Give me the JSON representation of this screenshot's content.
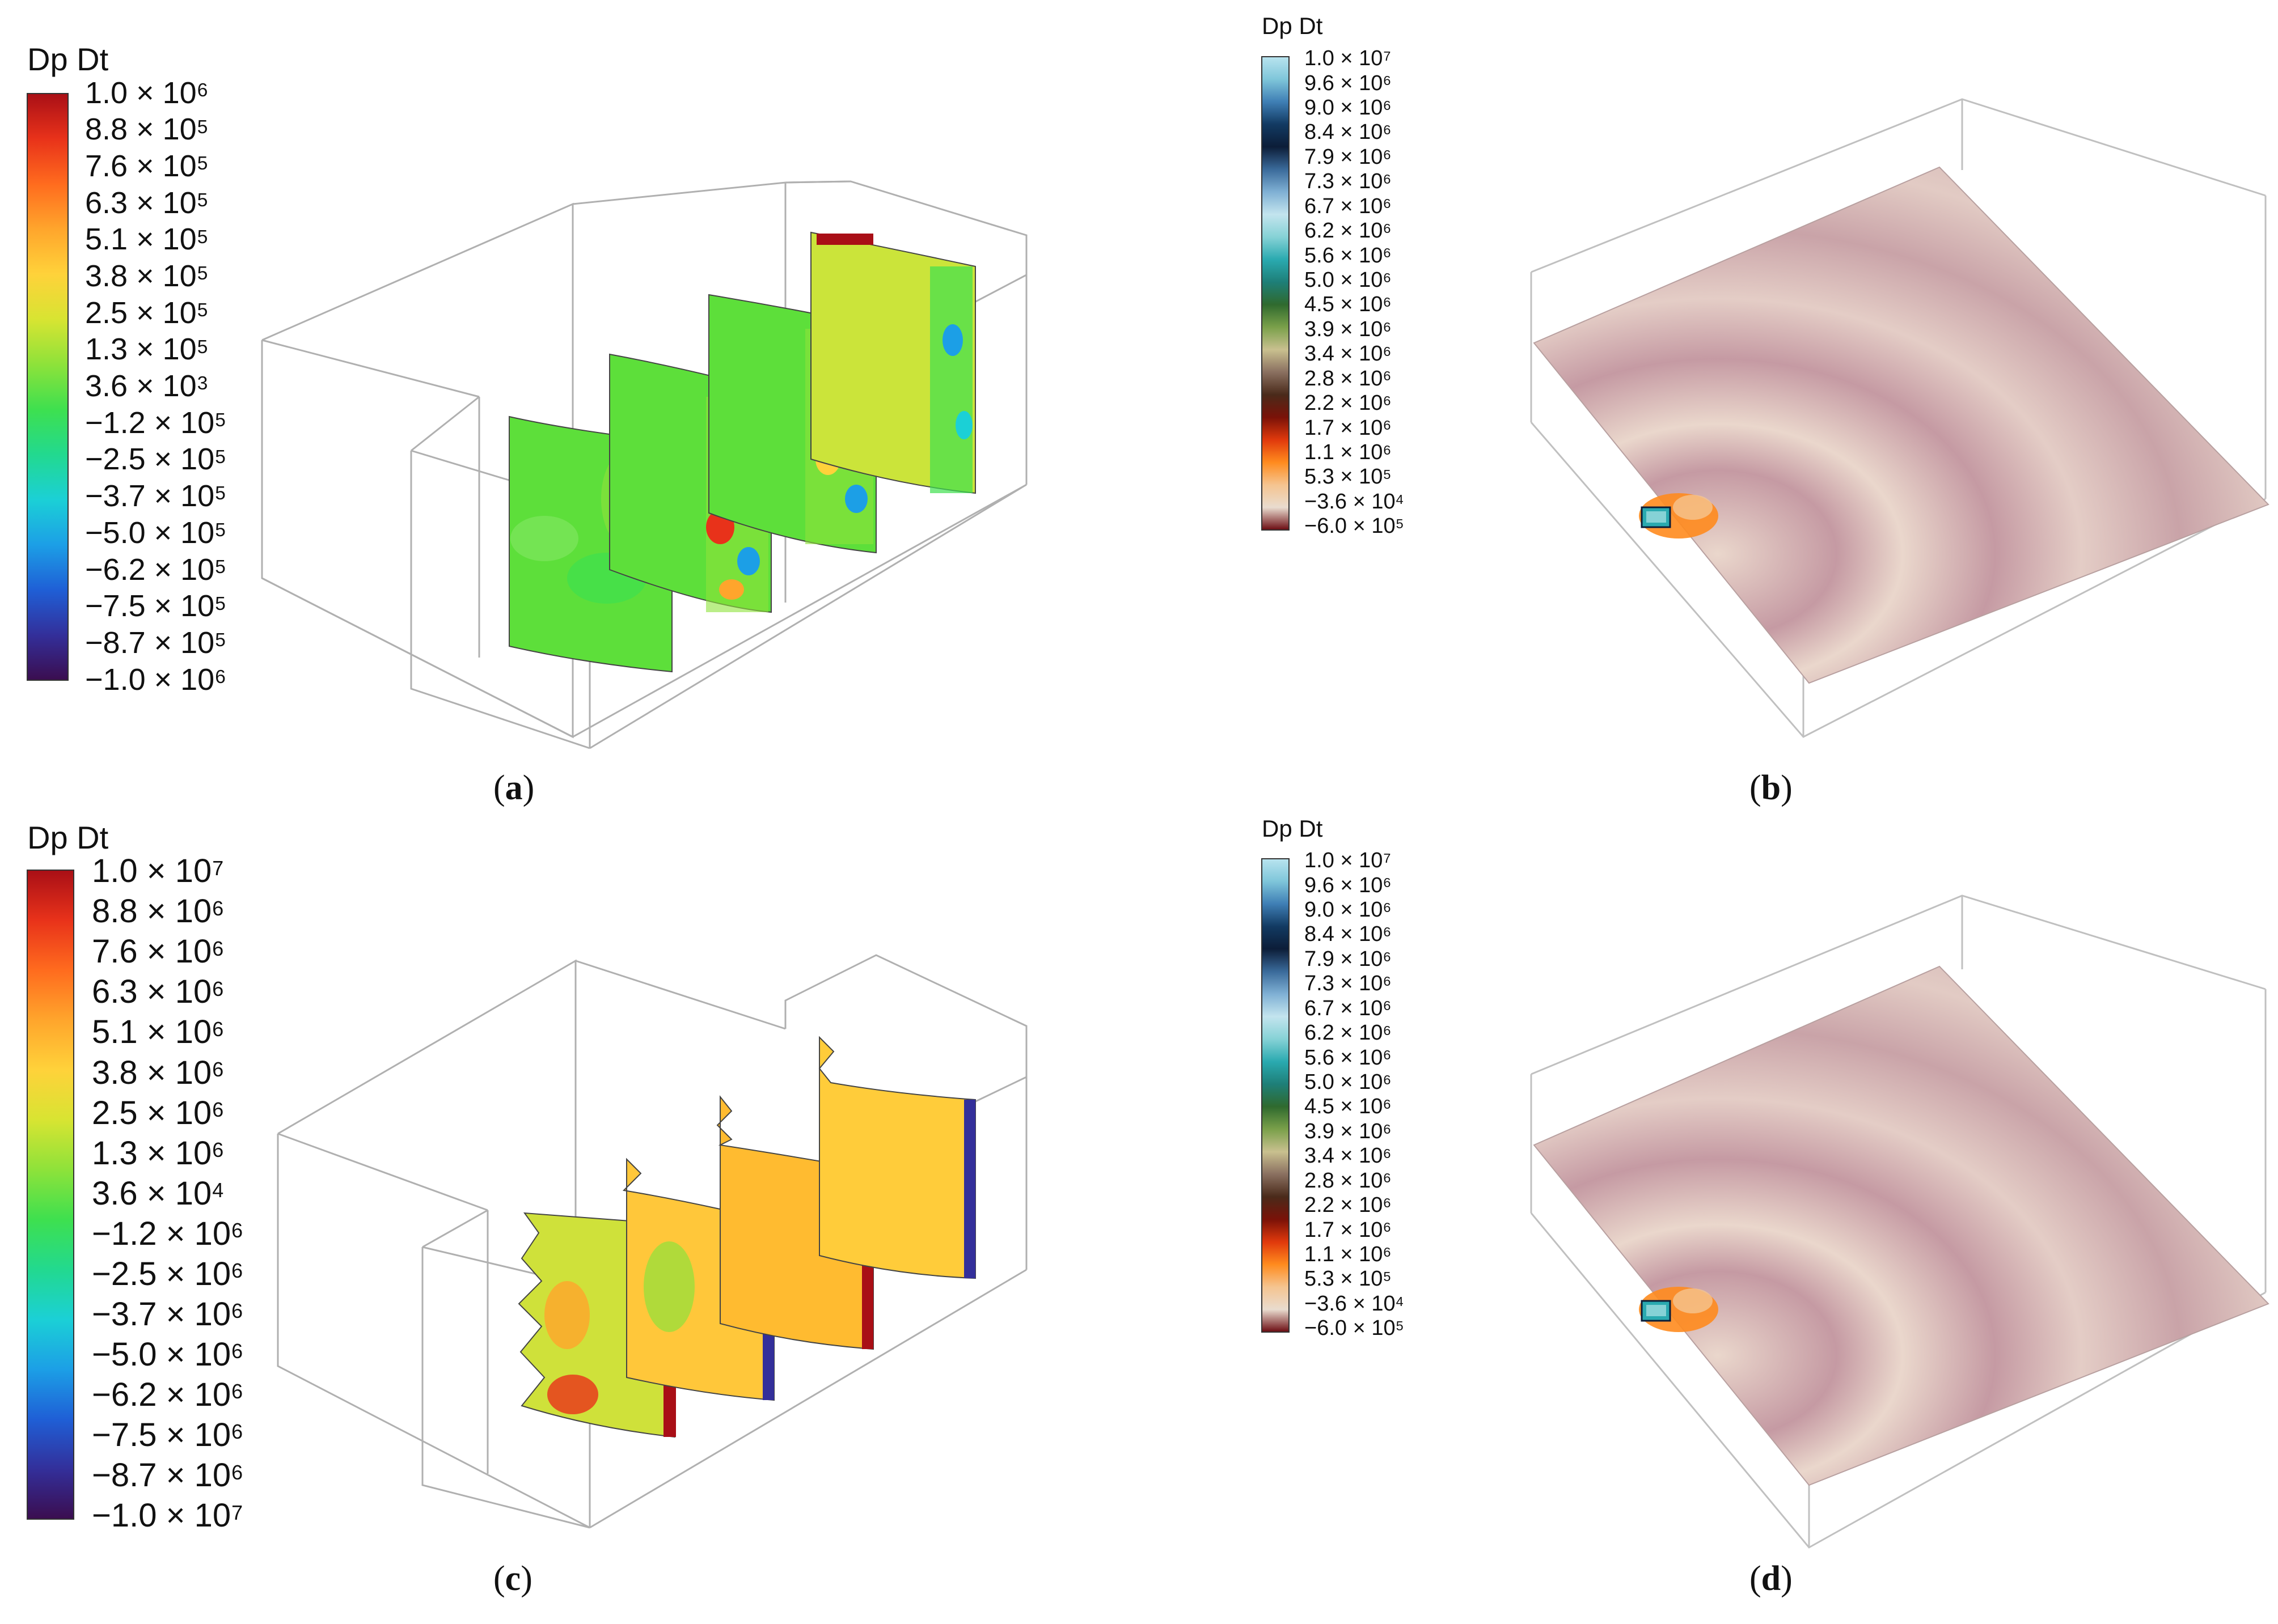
{
  "colors": {
    "jet": [
      "#3b0d4f",
      "#332f9a",
      "#1f5fd6",
      "#1c9fe6",
      "#1bd0d6",
      "#22d98f",
      "#3ee04f",
      "#8ee23a",
      "#d8e432",
      "#ffd23a",
      "#ffa52c",
      "#ff6b1e",
      "#e8321a",
      "#a90f16"
    ],
    "cmap": [
      "#6a0a10",
      "#e9dccf",
      "#f5c490",
      "#ff8b1e",
      "#e0390c",
      "#7a1208",
      "#4a2a1a",
      "#8a7060",
      "#c9c08f",
      "#7aa04a",
      "#2f6a2e",
      "#1e7f78",
      "#2aaab0",
      "#86d2d6",
      "#c3e4ee",
      "#7fb0d4",
      "#3a6a9a",
      "#0c1d38",
      "#123a62",
      "#3f7fb5",
      "#7fc6da",
      "#b9e4ef"
    ],
    "plane": "#dcc3c0",
    "plane_dark": "#c59aa3",
    "plane_light": "#ead7cc",
    "edge": "#b8b8b8"
  },
  "panels": [
    {
      "id": "a",
      "title": "Dp Dt",
      "caption": "a",
      "labels": [
        {
          "m": "1.0",
          "e": "6"
        },
        {
          "m": "8.8",
          "e": "5"
        },
        {
          "m": "7.6",
          "e": "5"
        },
        {
          "m": "6.3",
          "e": "5"
        },
        {
          "m": "5.1",
          "e": "5"
        },
        {
          "m": "3.8",
          "e": "5"
        },
        {
          "m": "2.5",
          "e": "5"
        },
        {
          "m": "1.3",
          "e": "5"
        },
        {
          "m": "3.6",
          "e": "3"
        },
        {
          "m": "−1.2",
          "e": "5"
        },
        {
          "m": "−2.5",
          "e": "5"
        },
        {
          "m": "−3.7",
          "e": "5"
        },
        {
          "m": "−5.0",
          "e": "5"
        },
        {
          "m": "−6.2",
          "e": "5"
        },
        {
          "m": "−7.5",
          "e": "5"
        },
        {
          "m": "−8.7",
          "e": "5"
        },
        {
          "m": "−1.0",
          "e": "6"
        }
      ]
    },
    {
      "id": "b",
      "title": "Dp Dt",
      "caption": "b",
      "labels": [
        {
          "m": "1.0",
          "e": "7"
        },
        {
          "m": "9.6",
          "e": "6"
        },
        {
          "m": "9.0",
          "e": "6"
        },
        {
          "m": "8.4",
          "e": "6"
        },
        {
          "m": "7.9",
          "e": "6"
        },
        {
          "m": "7.3",
          "e": "6"
        },
        {
          "m": "6.7",
          "e": "6"
        },
        {
          "m": "6.2",
          "e": "6"
        },
        {
          "m": "5.6",
          "e": "6"
        },
        {
          "m": "5.0",
          "e": "6"
        },
        {
          "m": "4.5",
          "e": "6"
        },
        {
          "m": "3.9",
          "e": "6"
        },
        {
          "m": "3.4",
          "e": "6"
        },
        {
          "m": "2.8",
          "e": "6"
        },
        {
          "m": "2.2",
          "e": "6"
        },
        {
          "m": "1.7",
          "e": "6"
        },
        {
          "m": "1.1",
          "e": "6"
        },
        {
          "m": "5.3",
          "e": "5"
        },
        {
          "m": "−3.6",
          "e": "4"
        },
        {
          "m": "−6.0",
          "e": "5"
        }
      ]
    },
    {
      "id": "c",
      "title": "Dp Dt",
      "caption": "c",
      "labels": [
        {
          "m": "1.0",
          "e": "7"
        },
        {
          "m": "8.8",
          "e": "6"
        },
        {
          "m": "7.6",
          "e": "6"
        },
        {
          "m": "6.3",
          "e": "6"
        },
        {
          "m": "5.1",
          "e": "6"
        },
        {
          "m": "3.8",
          "e": "6"
        },
        {
          "m": "2.5",
          "e": "6"
        },
        {
          "m": "1.3",
          "e": "6"
        },
        {
          "m": "3.6",
          "e": "4"
        },
        {
          "m": "−1.2",
          "e": "6"
        },
        {
          "m": "−2.5",
          "e": "6"
        },
        {
          "m": "−3.7",
          "e": "6"
        },
        {
          "m": "−5.0",
          "e": "6"
        },
        {
          "m": "−6.2",
          "e": "6"
        },
        {
          "m": "−7.5",
          "e": "6"
        },
        {
          "m": "−8.7",
          "e": "6"
        },
        {
          "m": "−1.0",
          "e": "7"
        }
      ]
    },
    {
      "id": "d",
      "title": "Dp Dt",
      "caption": "d",
      "labels": [
        {
          "m": "1.0",
          "e": "7"
        },
        {
          "m": "9.6",
          "e": "6"
        },
        {
          "m": "9.0",
          "e": "6"
        },
        {
          "m": "8.4",
          "e": "6"
        },
        {
          "m": "7.9",
          "e": "6"
        },
        {
          "m": "7.3",
          "e": "6"
        },
        {
          "m": "6.7",
          "e": "6"
        },
        {
          "m": "6.2",
          "e": "6"
        },
        {
          "m": "5.6",
          "e": "6"
        },
        {
          "m": "5.0",
          "e": "6"
        },
        {
          "m": "4.5",
          "e": "6"
        },
        {
          "m": "3.9",
          "e": "6"
        },
        {
          "m": "3.4",
          "e": "6"
        },
        {
          "m": "2.8",
          "e": "6"
        },
        {
          "m": "2.2",
          "e": "6"
        },
        {
          "m": "1.7",
          "e": "6"
        },
        {
          "m": "1.1",
          "e": "6"
        },
        {
          "m": "5.3",
          "e": "5"
        },
        {
          "m": "−3.6",
          "e": "4"
        },
        {
          "m": "−6.0",
          "e": "5"
        }
      ]
    }
  ]
}
